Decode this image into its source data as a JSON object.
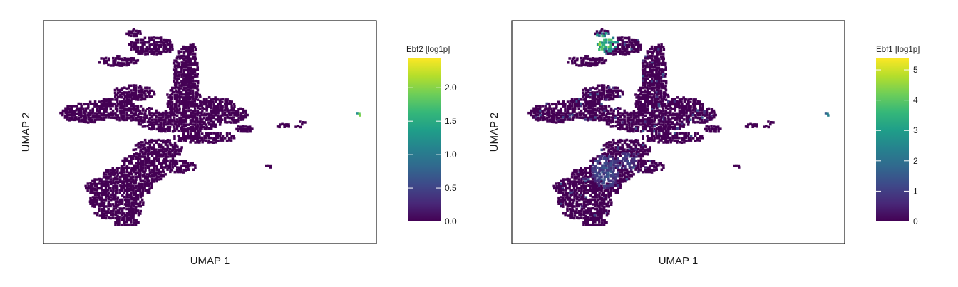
{
  "chart_data": [
    {
      "type": "heatmap",
      "subtype": "umap-hexbin",
      "xlabel": "UMAP 1",
      "ylabel": "UMAP 2",
      "colorbar": {
        "title": "Ebf2 [log1p]",
        "ticks": [
          "0.0",
          "0.5",
          "1.0",
          "1.5",
          "2.0"
        ],
        "tick_values": [
          0,
          0.5,
          1.0,
          1.5,
          2.0
        ],
        "min": 0,
        "max": 2.45,
        "colormap": "viridis"
      },
      "expression_hotspots": [
        {
          "region": "far-right isolated cluster",
          "value": 2.3
        }
      ],
      "background_value": 0
    },
    {
      "type": "heatmap",
      "subtype": "umap-hexbin",
      "xlabel": "UMAP 1",
      "ylabel": "UMAP 2",
      "colorbar": {
        "title": "Ebf1 [log1p]",
        "ticks": [
          "0",
          "1",
          "2",
          "3",
          "4",
          "5"
        ],
        "tick_values": [
          0,
          1,
          2,
          3,
          4,
          5
        ],
        "min": 0,
        "max": 5.4,
        "colormap": "viridis"
      },
      "expression_hotspots": [
        {
          "region": "top-left cluster",
          "value": 4.2
        },
        {
          "region": "lower-middle branch",
          "value": 1.4
        },
        {
          "region": "far-right isolated cluster",
          "value": 2.8
        }
      ],
      "background_value": 0
    }
  ],
  "colors": {
    "viridis": [
      "#440154",
      "#482878",
      "#3e4989",
      "#31688e",
      "#26828e",
      "#1f9e89",
      "#35b779",
      "#6ece58",
      "#b5de2b",
      "#fde725"
    ],
    "frame": "#1a1a1a",
    "background": "#ffffff"
  }
}
